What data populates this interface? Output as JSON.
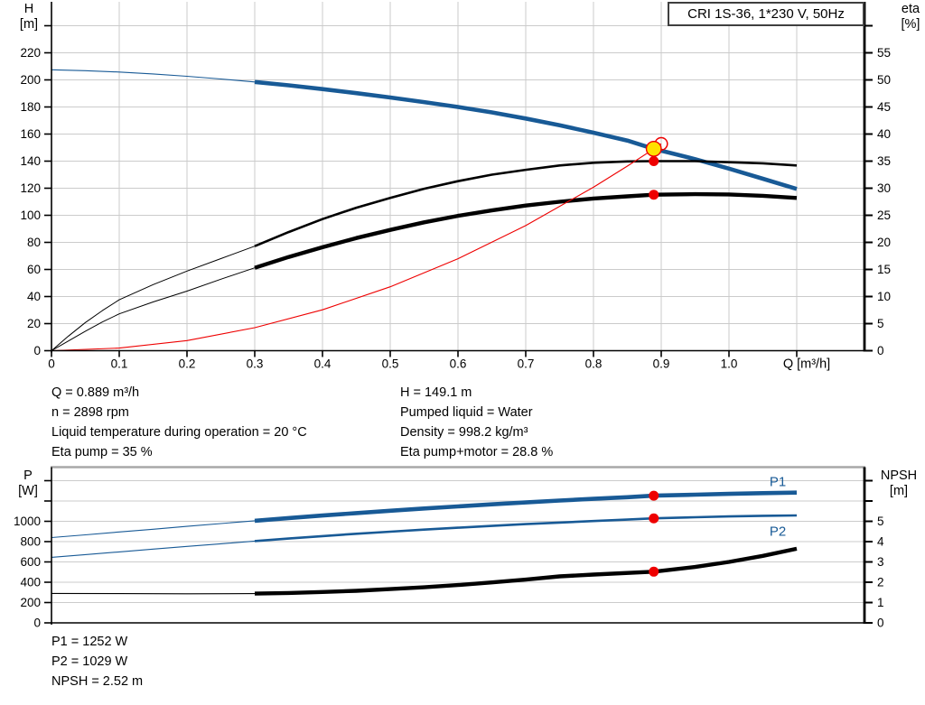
{
  "header": {
    "title": "CRI 1S-36, 1*230 V, 50Hz"
  },
  "colors": {
    "curve_blue": "#185a96",
    "curve_black": "#000000",
    "curve_red": "#ee0000",
    "duty_yellow": "#ffe000",
    "dot_red": "#ee0000",
    "grid": "#cbcbcb",
    "frame_gray": "#a8a8a8",
    "axis_black": "#000000"
  },
  "stats_top_left": {
    "line1": "Q = 0.889 m³/h",
    "line2": "n = 2898 rpm",
    "line3": "Liquid temperature during operation = 20 °C",
    "line4": "Eta pump = 35 %"
  },
  "stats_top_right": {
    "line1": "H = 149.1 m",
    "line2": "Pumped liquid = Water",
    "line3": "Density = 998.2 kg/m³",
    "line4": "Eta pump+motor = 28.8 %"
  },
  "stats_bottom": {
    "line1": "P1 = 1252 W",
    "line2": "P2 = 1029 W",
    "line3": "NPSH = 2.52 m"
  },
  "chart_data": [
    {
      "type": "line",
      "title": "CRI 1S-36, 1*230 V, 50Hz",
      "x_axis": {
        "label": "Q [m³/h]",
        "ticks": [
          0,
          0.1,
          0.2,
          0.3,
          0.4,
          0.5,
          0.6,
          0.7,
          0.8,
          0.9,
          1.0
        ],
        "tick_labels": [
          "0",
          "0.1",
          "0.2",
          "0.3",
          "0.4",
          "0.5",
          "0.6",
          "0.7",
          "0.8",
          "0.9",
          "1.0"
        ],
        "minor": [
          1.1
        ],
        "range": [
          0,
          1.2
        ]
      },
      "left_axis": {
        "label": "H",
        "unit": "[m]",
        "ticks": [
          0,
          20,
          40,
          60,
          80,
          100,
          120,
          140,
          160,
          180,
          200,
          220
        ],
        "minor": [
          240
        ],
        "range": [
          0,
          258
        ]
      },
      "right_axis": {
        "label": "eta",
        "unit": "[%]",
        "ticks": [
          0,
          5,
          10,
          15,
          20,
          25,
          30,
          35,
          40,
          45,
          50,
          55
        ],
        "minor": [
          60
        ],
        "range": [
          0,
          64.5
        ]
      },
      "series": [
        {
          "name": "QH pump curve",
          "axis": "left",
          "color": "curve_blue",
          "thin_until": 0.3,
          "thin_width": 1.1,
          "width": 4.6,
          "points": [
            [
              0,
              207.5
            ],
            [
              0.05,
              206.8
            ],
            [
              0.1,
              205.8
            ],
            [
              0.15,
              204.4
            ],
            [
              0.2,
              202.7
            ],
            [
              0.25,
              200.7
            ],
            [
              0.3,
              198.5
            ],
            [
              0.35,
              196
            ],
            [
              0.4,
              193.2
            ],
            [
              0.45,
              190.2
            ],
            [
              0.5,
              187
            ],
            [
              0.55,
              183.6
            ],
            [
              0.6,
              180
            ],
            [
              0.65,
              176
            ],
            [
              0.7,
              171.5
            ],
            [
              0.75,
              166.5
            ],
            [
              0.8,
              161
            ],
            [
              0.85,
              155.2
            ],
            [
              0.889,
              149.1
            ],
            [
              0.95,
              141.5
            ],
            [
              1.0,
              134.5
            ],
            [
              1.05,
              127
            ],
            [
              1.1,
              119.5
            ]
          ]
        },
        {
          "name": "Eta pump curve",
          "axis": "right",
          "color": "curve_black",
          "thin_until": 0.3,
          "thin_width": 1,
          "width": 2.6,
          "points": [
            [
              0,
              0
            ],
            [
              0.025,
              2.7
            ],
            [
              0.05,
              5.2
            ],
            [
              0.075,
              7.4
            ],
            [
              0.1,
              9.4
            ],
            [
              0.15,
              12.2
            ],
            [
              0.2,
              14.7
            ],
            [
              0.25,
              17
            ],
            [
              0.3,
              19.3
            ],
            [
              0.35,
              21.9
            ],
            [
              0.4,
              24.3
            ],
            [
              0.45,
              26.4
            ],
            [
              0.5,
              28.2
            ],
            [
              0.55,
              29.9
            ],
            [
              0.6,
              31.3
            ],
            [
              0.65,
              32.5
            ],
            [
              0.7,
              33.4
            ],
            [
              0.75,
              34.2
            ],
            [
              0.8,
              34.7
            ],
            [
              0.85,
              34.95
            ],
            [
              0.889,
              35
            ],
            [
              0.95,
              35
            ],
            [
              1.0,
              34.8
            ],
            [
              1.05,
              34.6
            ],
            [
              1.1,
              34.2
            ]
          ]
        },
        {
          "name": "Eta pump plus motor curve",
          "axis": "right",
          "color": "curve_black",
          "thin_until": 0.3,
          "thin_width": 1,
          "width": 4.4,
          "points": [
            [
              0,
              0
            ],
            [
              0.025,
              1.8
            ],
            [
              0.05,
              3.6
            ],
            [
              0.075,
              5.3
            ],
            [
              0.1,
              6.8
            ],
            [
              0.15,
              9
            ],
            [
              0.2,
              11
            ],
            [
              0.25,
              13.2
            ],
            [
              0.3,
              15.3
            ],
            [
              0.35,
              17.3
            ],
            [
              0.4,
              19.1
            ],
            [
              0.45,
              20.8
            ],
            [
              0.5,
              22.3
            ],
            [
              0.55,
              23.7
            ],
            [
              0.6,
              24.9
            ],
            [
              0.65,
              25.9
            ],
            [
              0.7,
              26.8
            ],
            [
              0.75,
              27.5
            ],
            [
              0.8,
              28.1
            ],
            [
              0.85,
              28.5
            ],
            [
              0.889,
              28.8
            ],
            [
              0.95,
              28.9
            ],
            [
              1.0,
              28.85
            ],
            [
              1.05,
              28.6
            ],
            [
              1.1,
              28.2
            ]
          ]
        },
        {
          "name": "System curve",
          "axis": "left",
          "color": "curve_red",
          "thin_width": 1.1,
          "width": 1.1,
          "points": [
            [
              0,
              0
            ],
            [
              0.1,
              1.9
            ],
            [
              0.2,
              7.5
            ],
            [
              0.3,
              17
            ],
            [
              0.4,
              30.2
            ],
            [
              0.5,
              47.2
            ],
            [
              0.6,
              67.9
            ],
            [
              0.7,
              92.4
            ],
            [
              0.8,
              120.7
            ],
            [
              0.85,
              136.3
            ],
            [
              0.889,
              149.1
            ],
            [
              0.9,
              152.8
            ]
          ]
        }
      ],
      "markers": [
        {
          "kind": "open",
          "name": "requested-duty-point",
          "q": 0.9,
          "value": 152.8,
          "axis": "left"
        },
        {
          "kind": "duty",
          "name": "duty-point",
          "q": 0.889,
          "value": 149.1,
          "axis": "left"
        },
        {
          "kind": "dot",
          "name": "eta-pump-dot",
          "q": 0.889,
          "value": 35,
          "axis": "right"
        },
        {
          "kind": "dot",
          "name": "eta-pump-motor-dot",
          "q": 0.889,
          "value": 28.8,
          "axis": "right"
        }
      ]
    },
    {
      "type": "line",
      "title": "Power and NPSH curves",
      "x_axis": {
        "label": "",
        "ticks": [],
        "tick_labels": [],
        "minor": [],
        "range": [
          0,
          1.2
        ]
      },
      "left_axis": {
        "label": "P",
        "unit": "[W]",
        "ticks": [
          0,
          200,
          400,
          600,
          800,
          1000
        ],
        "minor": [
          1200,
          1400
        ],
        "range": [
          0,
          1533
        ]
      },
      "right_axis": {
        "label": "NPSH",
        "unit": "[m]",
        "ticks": [
          0,
          1,
          2,
          3,
          4,
          5
        ],
        "minor": [
          6,
          7
        ],
        "range": [
          0,
          7.67
        ]
      },
      "series": [
        {
          "name": "P1 power curve",
          "axis": "left",
          "color": "curve_blue",
          "label": "P1",
          "thin_until": 0.3,
          "thin_width": 1.1,
          "width": 4.6,
          "points": [
            [
              0,
              840
            ],
            [
              0.05,
              867
            ],
            [
              0.1,
              895
            ],
            [
              0.15,
              922
            ],
            [
              0.2,
              950
            ],
            [
              0.25,
              978
            ],
            [
              0.3,
              1005
            ],
            [
              0.35,
              1032
            ],
            [
              0.4,
              1057
            ],
            [
              0.45,
              1081
            ],
            [
              0.5,
              1104
            ],
            [
              0.55,
              1126
            ],
            [
              0.6,
              1147
            ],
            [
              0.65,
              1167
            ],
            [
              0.7,
              1186
            ],
            [
              0.75,
              1204
            ],
            [
              0.8,
              1221
            ],
            [
              0.85,
              1237
            ],
            [
              0.889,
              1252
            ],
            [
              0.95,
              1262
            ],
            [
              1.0,
              1270
            ],
            [
              1.05,
              1277
            ],
            [
              1.1,
              1283
            ]
          ]
        },
        {
          "name": "P2 power curve",
          "axis": "left",
          "color": "curve_blue",
          "label": "P2",
          "thin_until": 0.3,
          "thin_width": 1.1,
          "width": 2.6,
          "points": [
            [
              0,
              645
            ],
            [
              0.05,
              672
            ],
            [
              0.1,
              699
            ],
            [
              0.15,
              726
            ],
            [
              0.2,
              753
            ],
            [
              0.25,
              779
            ],
            [
              0.3,
              805
            ],
            [
              0.35,
              830
            ],
            [
              0.4,
              854
            ],
            [
              0.45,
              877
            ],
            [
              0.5,
              898
            ],
            [
              0.55,
              918
            ],
            [
              0.6,
              937
            ],
            [
              0.65,
              955
            ],
            [
              0.7,
              972
            ],
            [
              0.75,
              988
            ],
            [
              0.8,
              1003
            ],
            [
              0.85,
              1017
            ],
            [
              0.889,
              1029
            ],
            [
              0.95,
              1040
            ],
            [
              1.0,
              1048
            ],
            [
              1.05,
              1054
            ],
            [
              1.1,
              1058
            ]
          ]
        },
        {
          "name": "NPSH curve",
          "axis": "right",
          "color": "curve_black",
          "thin_until": 0.3,
          "thin_width": 1.1,
          "width": 4.4,
          "points": [
            [
              0,
              1.45
            ],
            [
              0.1,
              1.44
            ],
            [
              0.2,
              1.43
            ],
            [
              0.3,
              1.44
            ],
            [
              0.35,
              1.47
            ],
            [
              0.4,
              1.52
            ],
            [
              0.45,
              1.58
            ],
            [
              0.5,
              1.66
            ],
            [
              0.55,
              1.75
            ],
            [
              0.6,
              1.86
            ],
            [
              0.65,
              1.99
            ],
            [
              0.7,
              2.13
            ],
            [
              0.75,
              2.29
            ],
            [
              0.8,
              2.38
            ],
            [
              0.889,
              2.52
            ],
            [
              0.95,
              2.75
            ],
            [
              1.0,
              3.0
            ],
            [
              1.05,
              3.3
            ],
            [
              1.1,
              3.65
            ]
          ]
        }
      ],
      "markers": [
        {
          "kind": "dot",
          "name": "p1-dot",
          "q": 0.889,
          "value": 1252,
          "axis": "left"
        },
        {
          "kind": "dot",
          "name": "p2-dot",
          "q": 0.889,
          "value": 1029,
          "axis": "left"
        },
        {
          "kind": "dot",
          "name": "npsh-dot",
          "q": 0.889,
          "value": 2.52,
          "axis": "right"
        }
      ]
    }
  ]
}
